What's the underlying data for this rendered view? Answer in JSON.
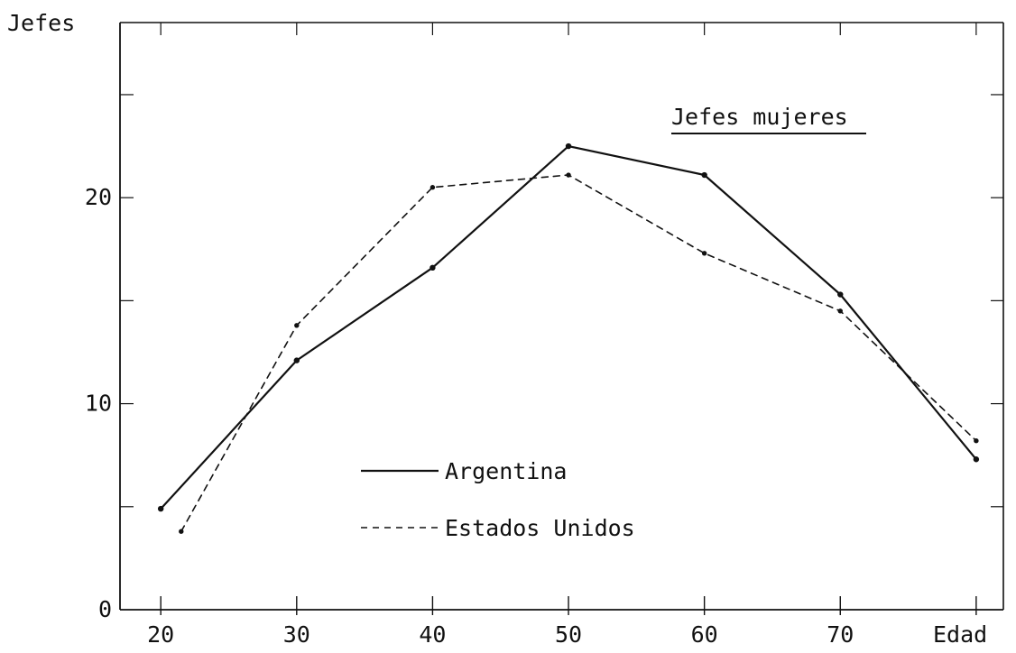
{
  "chart_data": {
    "type": "line",
    "title": "Jefes mujeres",
    "ylabel": "Jefes",
    "xlabel": "Edad",
    "x_ticks": [
      "20",
      "30",
      "40",
      "50",
      "60",
      "70"
    ],
    "y_ticks": [
      "0",
      "10",
      "20"
    ],
    "xlim": [
      17,
      82
    ],
    "ylim": [
      0,
      28.5
    ],
    "grid": false,
    "legend_position": "center-left",
    "series": [
      {
        "name": "Argentina",
        "style": "solid",
        "color": "#111111",
        "x": [
          20,
          30,
          40,
          50,
          60,
          70,
          80
        ],
        "y": [
          4.9,
          12.1,
          16.6,
          22.5,
          21.1,
          15.3,
          7.3
        ]
      },
      {
        "name": "Estados Unidos",
        "style": "dashed",
        "color": "#111111",
        "x": [
          21.5,
          30,
          40,
          50,
          60,
          70,
          80
        ],
        "y": [
          3.8,
          13.8,
          20.5,
          21.1,
          17.3,
          14.5,
          8.2
        ]
      }
    ]
  }
}
